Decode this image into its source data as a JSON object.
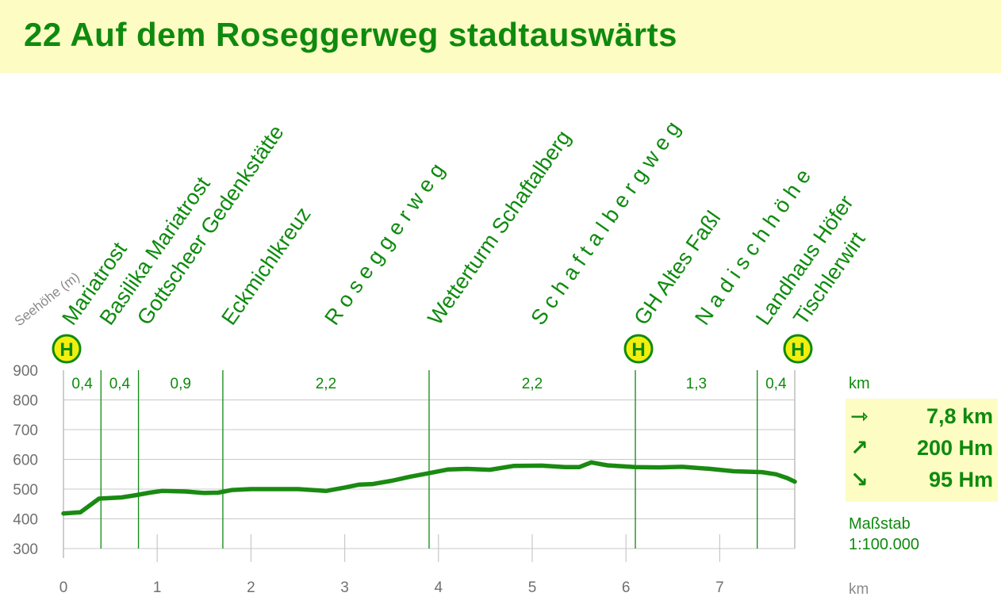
{
  "title": "22  Auf dem Roseggerweg stadtauswärts",
  "chart_data": {
    "type": "line",
    "title": "22  Auf dem Roseggerweg stadtauswärts",
    "xlabel": "km",
    "ylabel": "Seehöhe (m)",
    "xlim": [
      0,
      7.8
    ],
    "ylim": [
      300,
      900
    ],
    "x_ticks": [
      0,
      1,
      2,
      3,
      4,
      5,
      6,
      7
    ],
    "y_ticks": [
      300,
      400,
      500,
      600,
      700,
      800,
      900
    ],
    "grid": true,
    "series": [
      {
        "x": [
          0,
          0.18,
          0.38,
          0.5,
          0.62,
          0.78,
          0.92,
          1.05,
          1.3,
          1.5,
          1.65,
          1.8,
          2.0,
          2.2,
          2.5,
          2.8,
          3.0,
          3.15,
          3.3,
          3.5,
          3.7,
          3.92,
          4.1,
          4.3,
          4.55,
          4.8,
          5.1,
          5.35,
          5.5,
          5.63,
          5.8,
          6.1,
          6.35,
          6.6,
          6.9,
          7.15,
          7.45,
          7.6,
          7.72,
          7.8
        ],
        "y": [
          418,
          422,
          468,
          470,
          472,
          480,
          488,
          494,
          492,
          487,
          488,
          497,
          500,
          500,
          500,
          494,
          505,
          515,
          517,
          528,
          542,
          555,
          566,
          568,
          565,
          578,
          579,
          574,
          574,
          590,
          580,
          574,
          573,
          575,
          568,
          560,
          557,
          550,
          537,
          525
        ]
      }
    ],
    "segments": [
      {
        "from": 0,
        "to": 0.4,
        "label": "0,4"
      },
      {
        "from": 0.4,
        "to": 0.8,
        "label": "0,4"
      },
      {
        "from": 0.8,
        "to": 1.7,
        "label": "0,9"
      },
      {
        "from": 1.7,
        "to": 3.9,
        "label": "2,2"
      },
      {
        "from": 3.9,
        "to": 6.1,
        "label": "2,2"
      },
      {
        "from": 6.1,
        "to": 7.4,
        "label": "1,3"
      },
      {
        "from": 7.4,
        "to": 7.8,
        "label": "0,4"
      }
    ],
    "waypoints": [
      {
        "name": "Mariatrost",
        "km": 0,
        "bus_stop": true
      },
      {
        "name": "Basilika Mariatrost",
        "km": 0.4,
        "bus_stop": false
      },
      {
        "name": "Gottscheer Gedenkstätte",
        "km": 0.8,
        "bus_stop": false
      },
      {
        "name": "Eckmichlkreuz",
        "km": 1.7,
        "bus_stop": false
      },
      {
        "name": "R o s e g g e r w e g",
        "km": 2.8,
        "bus_stop": false
      },
      {
        "name": "Wetterturm Schaftalberg",
        "km": 3.9,
        "bus_stop": false
      },
      {
        "name": "S c h a f t a l b e r g w e g",
        "km": 5.0,
        "bus_stop": false
      },
      {
        "name": "GH Altes Faßl",
        "km": 6.1,
        "bus_stop": true
      },
      {
        "name": "N a d i s c h h ö h e",
        "km": 6.75,
        "bus_stop": false
      },
      {
        "name": "Landhaus Höfer",
        "km": 7.4,
        "bus_stop": false
      },
      {
        "name": "Tischlerwirt",
        "km": 7.8,
        "bus_stop": true
      }
    ],
    "bus_stop_symbol": "H"
  },
  "summary": {
    "km_label": "km",
    "distance": "7,8 km",
    "ascent": "200 Hm",
    "descent": "95 Hm",
    "distance_icon": "arrow-right-icon",
    "ascent_icon": "arrow-up-right-icon",
    "descent_icon": "arrow-down-right-icon",
    "scale_label": "Maßstab",
    "scale_value": "1:100.000"
  },
  "colors": {
    "primary": "#0e8a0e",
    "profile_line": "#1a8a12",
    "panel_bg": "#fdfcc3",
    "bus_stop_fill": "#f2ee10",
    "axis_text": "#707070",
    "grid": "#c8c8c8"
  }
}
